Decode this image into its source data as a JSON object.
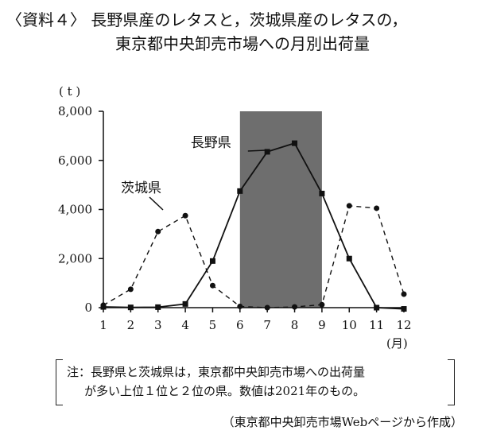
{
  "title": {
    "line1": "〈資料４〉 長野県産のレタスと，茨城県産のレタスの，",
    "line2": "東京都中央卸売市場への月別出荷量"
  },
  "chart_data": {
    "type": "line",
    "x": [
      1,
      2,
      3,
      4,
      5,
      6,
      7,
      8,
      9,
      10,
      11,
      12
    ],
    "x_tick_labels": [
      "1",
      "2",
      "3",
      "4",
      "5",
      "6",
      "7",
      "8",
      "9",
      "10",
      "11",
      "12"
    ],
    "xlabel": "(月)",
    "ylabel": "( t )",
    "ylim": [
      0,
      8000
    ],
    "y_ticks": [
      0,
      2000,
      4000,
      6000,
      8000
    ],
    "y_tick_labels": [
      "0",
      "2,000",
      "4,000",
      "6,000",
      "8,000"
    ],
    "shaded_x_range": [
      6,
      9
    ],
    "shaded_color": "#6e6e6e",
    "grid": false,
    "series": [
      {
        "name": "長野県",
        "style": "solid",
        "marker": "square",
        "values": [
          30,
          10,
          20,
          150,
          1900,
          4750,
          6350,
          6700,
          4650,
          2000,
          0,
          -50
        ]
      },
      {
        "name": "茨城県",
        "style": "dashed",
        "marker": "circle",
        "values": [
          100,
          750,
          3100,
          3750,
          900,
          50,
          0,
          30,
          120,
          4150,
          4050,
          550
        ]
      }
    ]
  },
  "note": {
    "line1": "注：長野県と茨城県は，東京都中央卸売市場への出荷量",
    "line2": "が多い上位１位と２位の県。数値は2021年のもの。"
  },
  "source": "（東京都中央卸売市場Webページから作成）"
}
